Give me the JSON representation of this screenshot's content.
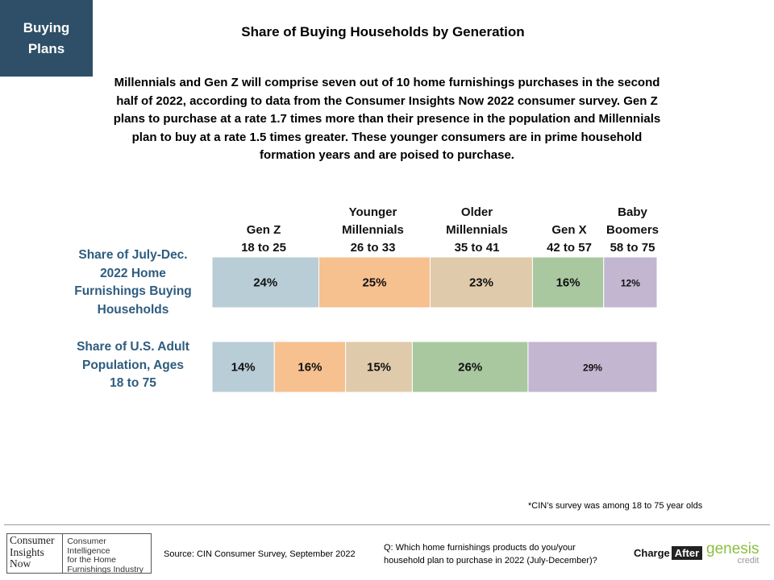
{
  "tag": {
    "line1": "Buying",
    "line2": "Plans"
  },
  "title": "Share of Buying Households by Generation",
  "description": "Millennials and Gen Z will comprise seven out of 10 home furnishings purchases in the second half of 2022, according to data from the Consumer Insights Now 2022 consumer survey. Gen Z plans to purchase at a rate 1.7 times more than their presence in the population and Millennials plan to buy at a rate 1.5 times greater. These younger consumers are in prime household formation years and are poised to purchase.",
  "generations": [
    {
      "line1": "Gen Z",
      "line2": "18 to 25"
    },
    {
      "line1": "Younger",
      "line2": "Millennials",
      "line3": "26 to 33"
    },
    {
      "line1": "Older",
      "line2": "Millennials",
      "line3": "35 to 41"
    },
    {
      "line1": "Gen X",
      "line2": "42 to 57"
    },
    {
      "line1": "Baby",
      "line2": "Boomers",
      "line3": "58 to 75"
    }
  ],
  "row_labels": [
    {
      "line1": "Share of July-Dec.",
      "line2": "2022 Home",
      "line3": "Furnishings Buying",
      "line4": "Households"
    },
    {
      "line1": "Share of U.S. Adult",
      "line2": "Population, Ages",
      "line3": "18 to 75"
    }
  ],
  "chart_data": {
    "type": "bar",
    "orientation": "horizontal",
    "stacked": true,
    "percent_stacked": true,
    "categories": [
      "Share of July-Dec. 2022 Home Furnishings Buying Households",
      "Share of U.S. Adult Population, Ages 18 to 75"
    ],
    "series": [
      {
        "name": "Gen Z 18 to 25",
        "values": [
          24,
          14
        ],
        "color": "#b9cdd7"
      },
      {
        "name": "Younger Millennials 26 to 33",
        "values": [
          25,
          16
        ],
        "color": "#f6c08f"
      },
      {
        "name": "Older Millennials 35 to 41",
        "values": [
          23,
          15
        ],
        "color": "#dfcbab"
      },
      {
        "name": "Gen X 42 to 57",
        "values": [
          16,
          26
        ],
        "color": "#a9c8a0"
      },
      {
        "name": "Baby Boomers 58 to 75",
        "values": [
          12,
          29
        ],
        "color": "#c2b6d1"
      }
    ],
    "data_labels": [
      [
        "24%",
        "25%",
        "23%",
        "16%",
        "12%"
      ],
      [
        "14%",
        "16%",
        "15%",
        "26%",
        "29%"
      ]
    ],
    "legend_placement": "top"
  },
  "footnote": "*CIN’s survey was among 18 to 75 year olds",
  "logo": {
    "word1": "Consumer",
    "word2": "Insights",
    "word3": "Now",
    "tag1": "Consumer Intelligence",
    "tag2": "for the Home",
    "tag3": "Furnishings Industry"
  },
  "source": "Source: CIN Consumer Survey, September  2022",
  "question": {
    "line1": "Q: Which home furnishings products do you/your",
    "line2": "household plan to purchase in 2022 (July-December)?"
  },
  "sponsor1": {
    "part1": "Charge",
    "part2": "After"
  },
  "sponsor2": {
    "main": "genesis",
    "sub": "credit"
  }
}
